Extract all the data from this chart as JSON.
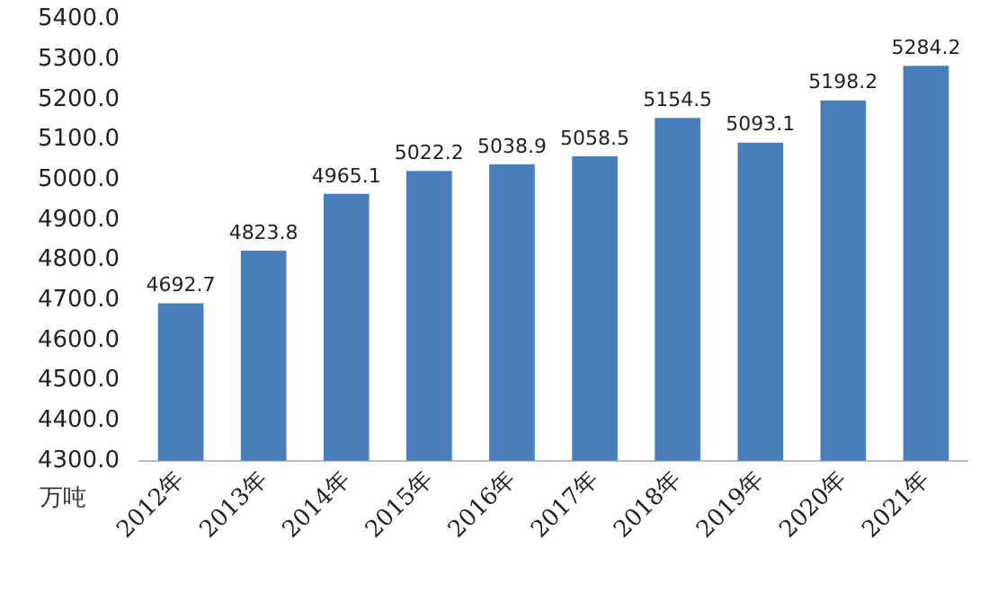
{
  "chart_data": {
    "type": "bar",
    "ylabel": "万吨",
    "categories": [
      "2012年",
      "2013年",
      "2014年",
      "2015年",
      "2016年",
      "2017年",
      "2018年",
      "2019年",
      "2020年",
      "2021年"
    ],
    "values": [
      4692.7,
      4823.8,
      4965.1,
      5022.2,
      5038.9,
      5058.5,
      5154.5,
      5093.1,
      5198.2,
      5284.2
    ],
    "color": "#4a7ebb",
    "data_labels": true,
    "grid": false,
    "legend": false,
    "ylim": [
      4300,
      5400
    ],
    "yticks": [
      {
        "value": 4300,
        "label": "4300.0"
      },
      {
        "value": 4400,
        "label": "4400.0"
      },
      {
        "value": 4500,
        "label": "4500.0"
      },
      {
        "value": 4600,
        "label": "4600.0"
      },
      {
        "value": 4700,
        "label": "4700.0"
      },
      {
        "value": 4800,
        "label": "4800.0"
      },
      {
        "value": 4900,
        "label": "4900.0"
      },
      {
        "value": 5000,
        "label": "5000.0"
      },
      {
        "value": 5100,
        "label": "5100.0"
      },
      {
        "value": 5200,
        "label": "5200.0"
      },
      {
        "value": 5300,
        "label": "5300.0"
      },
      {
        "value": 5400,
        "label": "5400.0"
      }
    ]
  }
}
